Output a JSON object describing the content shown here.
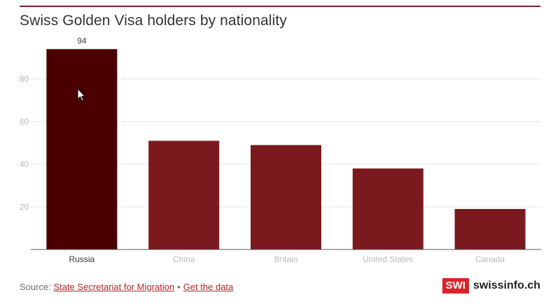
{
  "header": {
    "title": "Swiss Golden Visa holders by nationality"
  },
  "chart_data": {
    "type": "bar",
    "title": "Swiss Golden Visa holders by nationality",
    "categories": [
      "Russia",
      "China",
      "Britain",
      "United States",
      "Canada"
    ],
    "values": [
      94,
      51,
      49,
      38,
      19
    ],
    "highlighted": "Russia",
    "data_labels": {
      "Russia": "94"
    },
    "ylim": [
      0,
      100
    ],
    "yticks": [
      20,
      40,
      60,
      80
    ],
    "xlabel": "",
    "ylabel": "",
    "grid": true,
    "colors": {
      "bar": "#7b1a1e",
      "bar_highlight": "#4a0000",
      "grid": "#e6e6e6",
      "axis": "#555555",
      "tick_label": "#b8b8b8",
      "tick_label_active": "#333333"
    }
  },
  "footer": {
    "source_prefix": "Source:",
    "source_link": "State Secretariat for Migration",
    "separator": "•",
    "data_link": "Get the data"
  },
  "brand": {
    "badge": "SWI",
    "name": "swissinfo.ch"
  }
}
